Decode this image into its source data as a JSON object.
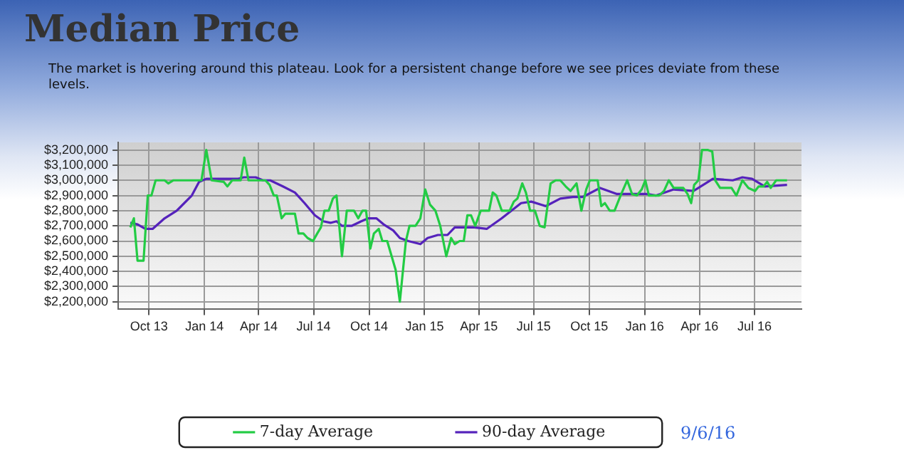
{
  "chart_data": {
    "type": "line",
    "title": "Median Price",
    "subtitle": "The market is hovering around this plateau. Look for a persistent change before we see prices deviate from these levels.",
    "annotations": [
      "9/6/16"
    ],
    "xlim": [
      "2013-08-11",
      "2016-09-17"
    ],
    "xticks": [
      {
        "value": "2013-10-01",
        "label": "Oct 13"
      },
      {
        "value": "2014-01-01",
        "label": "Jan 14"
      },
      {
        "value": "2014-04-01",
        "label": "Apr 14"
      },
      {
        "value": "2014-07-01",
        "label": "Jul 14"
      },
      {
        "value": "2014-10-01",
        "label": "Oct 14"
      },
      {
        "value": "2015-01-01",
        "label": "Jan 15"
      },
      {
        "value": "2015-04-01",
        "label": "Apr 15"
      },
      {
        "value": "2015-07-01",
        "label": "Jul 15"
      },
      {
        "value": "2015-10-01",
        "label": "Oct 15"
      },
      {
        "value": "2016-01-01",
        "label": "Jan 16"
      },
      {
        "value": "2016-04-01",
        "label": "Apr 16"
      },
      {
        "value": "2016-07-01",
        "label": "Jul 16"
      }
    ],
    "ylim": [
      2150000,
      3250000
    ],
    "yticks": [
      {
        "value": 2200000,
        "label": "$2,200,000"
      },
      {
        "value": 2300000,
        "label": "$2,300,000"
      },
      {
        "value": 2400000,
        "label": "$2,400,000"
      },
      {
        "value": 2500000,
        "label": "$2,500,000"
      },
      {
        "value": 2600000,
        "label": "$2,600,000"
      },
      {
        "value": 2700000,
        "label": "$2,700,000"
      },
      {
        "value": 2800000,
        "label": "$2,800,000"
      },
      {
        "value": 2900000,
        "label": "$2,900,000"
      },
      {
        "value": 3000000,
        "label": "$3,000,000"
      },
      {
        "value": 3100000,
        "label": "$3,100,000"
      },
      {
        "value": 3200000,
        "label": "$3,200,000"
      }
    ],
    "grid": true,
    "legend": "bottom",
    "marker": "none",
    "line_style": "solid",
    "series": [
      {
        "name": "7-day Average",
        "color": "#22cc44",
        "x": [
          "2013-08-31",
          "2013-09-06",
          "2013-09-12",
          "2013-09-22",
          "2013-09-29",
          "2013-10-05",
          "2013-10-12",
          "2013-10-27",
          "2013-11-02",
          "2013-11-10",
          "2013-12-27",
          "2014-01-04",
          "2014-01-13",
          "2014-02-02",
          "2014-02-08",
          "2014-02-16",
          "2014-03-02",
          "2014-03-08",
          "2014-03-15",
          "2014-04-12",
          "2014-04-19",
          "2014-04-26",
          "2014-05-01",
          "2014-05-09",
          "2014-05-15",
          "2014-05-31",
          "2014-06-06",
          "2014-06-14",
          "2014-06-21",
          "2014-06-30",
          "2014-07-07",
          "2014-07-13",
          "2014-07-19",
          "2014-07-26",
          "2014-08-02",
          "2014-08-08",
          "2014-08-17",
          "2014-08-25",
          "2014-09-06",
          "2014-09-13",
          "2014-09-20",
          "2014-09-26",
          "2014-10-03",
          "2014-10-09",
          "2014-10-17",
          "2014-10-23",
          "2014-10-31",
          "2014-11-14",
          "2014-11-21",
          "2014-12-01",
          "2014-12-07",
          "2014-12-17",
          "2014-12-25",
          "2015-01-02",
          "2015-01-10",
          "2015-01-19",
          "2015-01-27",
          "2015-02-06",
          "2015-02-14",
          "2015-02-20",
          "2015-02-28",
          "2015-03-07",
          "2015-03-13",
          "2015-03-19",
          "2015-03-26",
          "2015-04-04",
          "2015-04-18",
          "2015-04-24",
          "2015-04-30",
          "2015-05-09",
          "2015-05-22",
          "2015-05-29",
          "2015-06-04",
          "2015-06-12",
          "2015-06-18",
          "2015-06-25",
          "2015-07-03",
          "2015-07-11",
          "2015-07-19",
          "2015-07-29",
          "2015-08-06",
          "2015-08-14",
          "2015-08-23",
          "2015-08-31",
          "2015-09-10",
          "2015-09-18",
          "2015-09-26",
          "2015-10-02",
          "2015-10-15",
          "2015-10-21",
          "2015-10-27",
          "2015-11-04",
          "2015-11-12",
          "2015-11-22",
          "2015-12-03",
          "2015-12-11",
          "2015-12-19",
          "2015-12-27",
          "2016-01-02",
          "2016-01-08",
          "2016-01-25",
          "2016-02-02",
          "2016-02-10",
          "2016-02-18",
          "2016-03-05",
          "2016-03-12",
          "2016-03-18",
          "2016-03-23",
          "2016-03-30",
          "2016-04-05",
          "2016-04-15",
          "2016-04-22",
          "2016-04-27",
          "2016-05-05",
          "2016-05-24",
          "2016-06-01",
          "2016-06-11",
          "2016-06-21",
          "2016-07-02",
          "2016-07-08",
          "2016-07-16",
          "2016-07-22",
          "2016-07-28",
          "2016-08-06",
          "2016-08-24"
        ],
        "values": [
          2690000,
          2750000,
          2470000,
          2470000,
          2900000,
          2900000,
          3000000,
          3000000,
          2980000,
          3000000,
          3000000,
          3200000,
          3000000,
          2990000,
          2960000,
          3000000,
          3000000,
          3150000,
          3000000,
          3000000,
          2970000,
          2900000,
          2900000,
          2750000,
          2780000,
          2780000,
          2650000,
          2650000,
          2620000,
          2600000,
          2650000,
          2690000,
          2800000,
          2800000,
          2880000,
          2900000,
          2500000,
          2800000,
          2800000,
          2750000,
          2800000,
          2800000,
          2550000,
          2650000,
          2680000,
          2600000,
          2600000,
          2410000,
          2200000,
          2600000,
          2700000,
          2700000,
          2750000,
          2940000,
          2840000,
          2800000,
          2700000,
          2500000,
          2620000,
          2580000,
          2600000,
          2600000,
          2770000,
          2770000,
          2700000,
          2800000,
          2800000,
          2920000,
          2900000,
          2800000,
          2800000,
          2860000,
          2880000,
          2980000,
          2920000,
          2800000,
          2800000,
          2700000,
          2690000,
          2980000,
          3000000,
          3000000,
          2960000,
          2930000,
          2980000,
          2800000,
          2940000,
          3000000,
          3000000,
          2830000,
          2850000,
          2800000,
          2800000,
          2900000,
          3000000,
          2910000,
          2900000,
          2940000,
          3000000,
          2900000,
          2900000,
          2930000,
          3000000,
          2950000,
          2950000,
          2910000,
          2850000,
          2970000,
          3000000,
          3200000,
          3200000,
          3190000,
          3000000,
          2950000,
          2950000,
          2900000,
          3000000,
          2950000,
          2930000,
          2960000,
          2960000,
          2990000,
          2950000,
          3000000,
          3000000
        ]
      },
      {
        "name": "90-day Average",
        "color": "#5522bb",
        "x": [
          "2013-08-31",
          "2013-09-12",
          "2013-09-25",
          "2013-10-07",
          "2013-10-27",
          "2013-11-16",
          "2013-12-11",
          "2013-12-23",
          "2014-01-04",
          "2014-02-06",
          "2014-02-26",
          "2014-03-07",
          "2014-03-27",
          "2014-04-08",
          "2014-04-20",
          "2014-05-11",
          "2014-05-31",
          "2014-06-16",
          "2014-07-03",
          "2014-07-17",
          "2014-07-29",
          "2014-08-08",
          "2014-08-17",
          "2014-09-02",
          "2014-09-18",
          "2014-09-30",
          "2014-10-13",
          "2014-10-25",
          "2014-11-10",
          "2014-11-21",
          "2014-12-05",
          "2014-12-25",
          "2015-01-06",
          "2015-01-23",
          "2015-02-08",
          "2015-02-20",
          "2015-03-04",
          "2015-03-25",
          "2015-04-14",
          "2015-05-09",
          "2015-06-10",
          "2015-06-27",
          "2015-07-21",
          "2015-08-14",
          "2015-09-04",
          "2015-09-20",
          "2015-10-19",
          "2015-11-16",
          "2015-12-15",
          "2016-01-04",
          "2016-01-20",
          "2016-02-18",
          "2016-03-22",
          "2016-04-23",
          "2016-05-26",
          "2016-06-11",
          "2016-06-27",
          "2016-07-18",
          "2016-08-24"
        ],
        "values": [
          2720000,
          2710000,
          2680000,
          2680000,
          2750000,
          2800000,
          2900000,
          2990000,
          3010000,
          3010000,
          3010000,
          3020000,
          3020000,
          3000000,
          3000000,
          2960000,
          2920000,
          2850000,
          2770000,
          2730000,
          2720000,
          2730000,
          2700000,
          2700000,
          2730000,
          2750000,
          2750000,
          2710000,
          2670000,
          2620000,
          2600000,
          2580000,
          2620000,
          2640000,
          2640000,
          2690000,
          2690000,
          2690000,
          2680000,
          2750000,
          2850000,
          2860000,
          2830000,
          2880000,
          2890000,
          2890000,
          2950000,
          2910000,
          2910000,
          2910000,
          2900000,
          2940000,
          2930000,
          3010000,
          3000000,
          3020000,
          3010000,
          2960000,
          2970000
        ]
      }
    ]
  }
}
